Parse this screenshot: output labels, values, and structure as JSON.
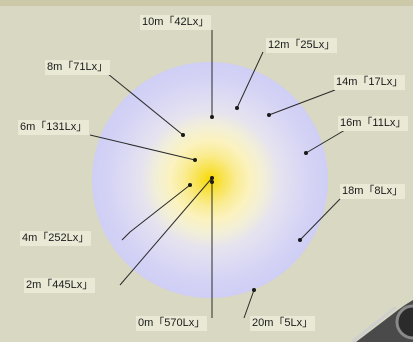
{
  "diagram": {
    "labels": {
      "m10": "10m「42Lx」",
      "m12": "12m「25Lx」",
      "m8": "8m「71Lx」",
      "m14": "14m「17Lx」",
      "m6": "6m「131Lx」",
      "m16": "16m「11Lx」",
      "m18": "18m「8Lx」",
      "m4": "4m「252Lx」",
      "m2": "2m「445Lx」",
      "m0": "0m「570Lx」",
      "m20": "20m「5Lx」"
    }
  }
}
